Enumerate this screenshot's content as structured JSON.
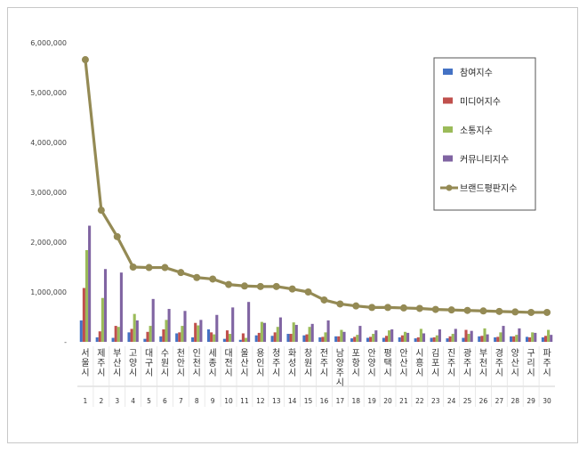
{
  "chart_data": {
    "type": "bar",
    "title": "",
    "xlabel": "",
    "ylabel": "",
    "ylim": [
      0,
      6000000
    ],
    "y_ticks": [
      "-",
      "1,000,000",
      "2,000,000",
      "3,000,000",
      "4,000,000",
      "5,000,000",
      "6,000,000"
    ],
    "grid": false,
    "legend_position": "top-right",
    "index_labels": [
      "1",
      "2",
      "3",
      "4",
      "5",
      "6",
      "7",
      "8",
      "9",
      "10",
      "11",
      "12",
      "13",
      "14",
      "15",
      "16",
      "17",
      "18",
      "19",
      "20",
      "21",
      "22",
      "23",
      "24",
      "25",
      "26",
      "27",
      "28",
      "29",
      "30"
    ],
    "categories": [
      "서울시",
      "제주시",
      "부산시",
      "고양시",
      "대구시",
      "수원시",
      "천안시",
      "인천시",
      "세종시",
      "대전시",
      "울산시",
      "용인시",
      "청주시",
      "화성시",
      "창원시",
      "전주시",
      "남양주시",
      "포항시",
      "안양시",
      "평택시",
      "안산시",
      "시흥시",
      "김포시",
      "진주시",
      "광주시",
      "부천시",
      "경주시",
      "양산시",
      "구리시",
      "파주시"
    ],
    "series": [
      {
        "name": "참여지수",
        "type": "bar",
        "color": "#4472c4",
        "values": [
          430000,
          90000,
          80000,
          190000,
          60000,
          110000,
          170000,
          90000,
          250000,
          60000,
          40000,
          130000,
          120000,
          160000,
          130000,
          90000,
          110000,
          70000,
          80000,
          80000,
          90000,
          70000,
          80000,
          70000,
          80000,
          110000,
          90000,
          110000,
          100000,
          90000
        ]
      },
      {
        "name": "미디어지수",
        "type": "bar",
        "color": "#c0504d",
        "values": [
          1080000,
          210000,
          320000,
          260000,
          200000,
          250000,
          190000,
          380000,
          190000,
          230000,
          170000,
          180000,
          190000,
          160000,
          150000,
          100000,
          110000,
          100000,
          100000,
          120000,
          130000,
          90000,
          90000,
          110000,
          240000,
          120000,
          100000,
          110000,
          90000,
          120000
        ]
      },
      {
        "name": "소통지수",
        "type": "bar",
        "color": "#9bbb59",
        "values": [
          1840000,
          880000,
          300000,
          560000,
          320000,
          440000,
          320000,
          330000,
          150000,
          160000,
          80000,
          400000,
          300000,
          390000,
          300000,
          190000,
          240000,
          140000,
          160000,
          230000,
          200000,
          260000,
          130000,
          160000,
          160000,
          270000,
          190000,
          140000,
          190000,
          240000
        ]
      },
      {
        "name": "커뮤니티지수",
        "type": "bar",
        "color": "#8064a2",
        "values": [
          2330000,
          1460000,
          1390000,
          430000,
          860000,
          660000,
          620000,
          440000,
          540000,
          690000,
          800000,
          380000,
          490000,
          340000,
          360000,
          430000,
          200000,
          320000,
          230000,
          250000,
          180000,
          170000,
          250000,
          260000,
          220000,
          150000,
          320000,
          270000,
          180000,
          140000
        ]
      },
      {
        "name": "브랜드평판지수",
        "type": "line",
        "color": "#948a54",
        "values": [
          5660000,
          2640000,
          2110000,
          1500000,
          1490000,
          1490000,
          1390000,
          1290000,
          1260000,
          1150000,
          1120000,
          1110000,
          1110000,
          1060000,
          1000000,
          840000,
          760000,
          720000,
          690000,
          690000,
          680000,
          670000,
          650000,
          640000,
          630000,
          620000,
          610000,
          600000,
          590000,
          590000
        ]
      }
    ]
  }
}
